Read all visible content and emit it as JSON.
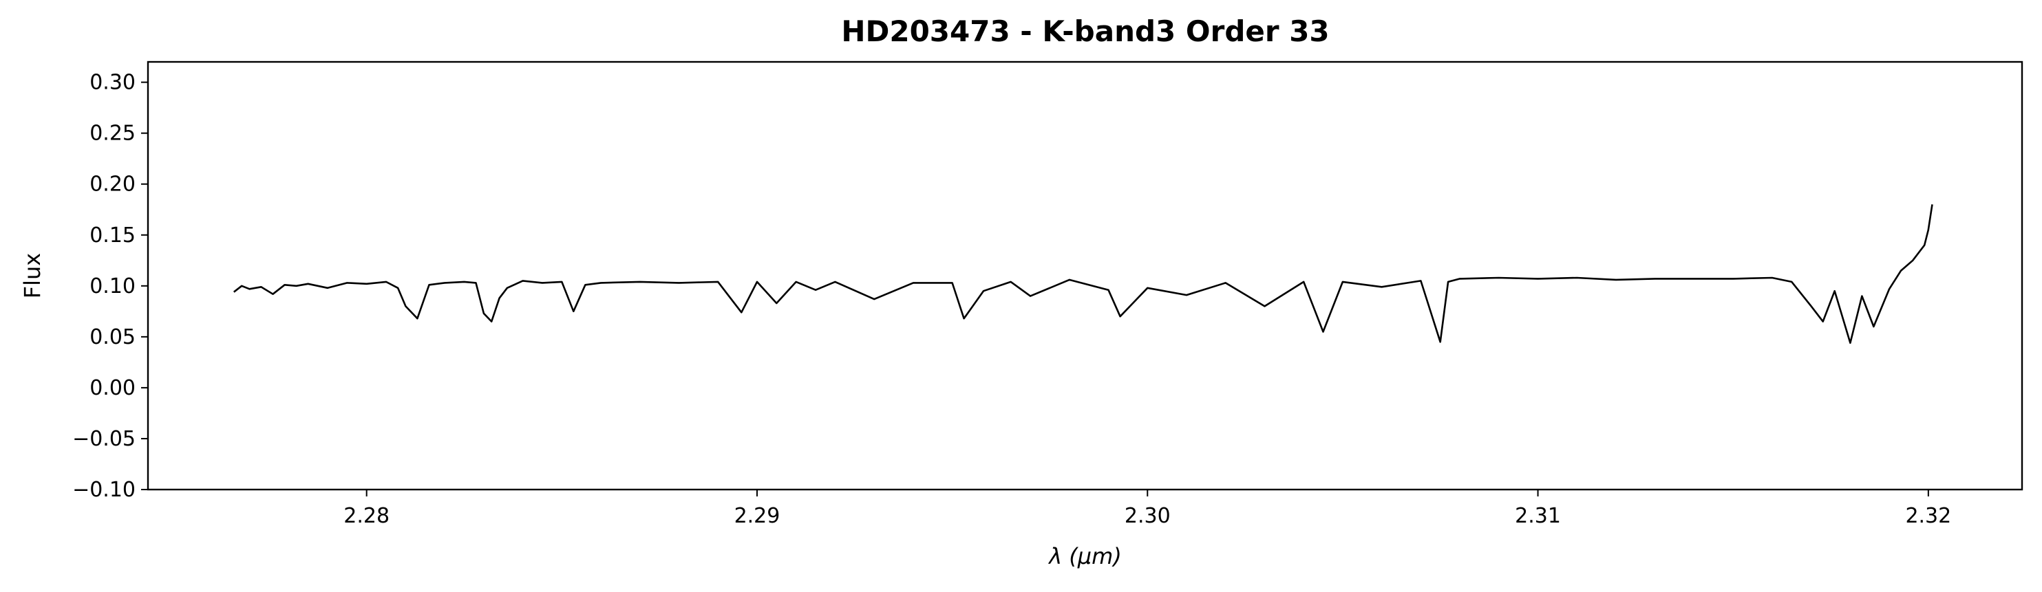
{
  "chart_data": {
    "type": "line",
    "title": "HD203473 - K-band3 Order 33",
    "xlabel": "λ (μm)",
    "ylabel": "Flux",
    "xlim": [
      2.2744,
      2.3224
    ],
    "ylim": [
      -0.1,
      0.32
    ],
    "x_ticks": [
      2.28,
      2.29,
      2.3,
      2.31,
      2.32
    ],
    "x_tick_labels": [
      "2.28",
      "2.29",
      "2.30",
      "2.31",
      "2.32"
    ],
    "y_ticks": [
      -0.1,
      -0.05,
      0.0,
      0.05,
      0.1,
      0.15,
      0.2,
      0.25,
      0.3
    ],
    "y_tick_labels": [
      "−0.10",
      "−0.05",
      "0.00",
      "0.05",
      "0.10",
      "0.15",
      "0.20",
      "0.25",
      "0.30"
    ],
    "grid": false,
    "legend": "none",
    "series": [
      {
        "color": "#000000",
        "x": [
          2.2766,
          2.2768,
          2.277,
          2.2773,
          2.2776,
          2.2779,
          2.2782,
          2.2785,
          2.279,
          2.2795,
          2.28,
          2.2805,
          2.2808,
          2.281,
          2.2813,
          2.2816,
          2.282,
          2.2825,
          2.2828,
          2.283,
          2.2832,
          2.2834,
          2.2836,
          2.284,
          2.2845,
          2.285,
          2.2853,
          2.2856,
          2.286,
          2.287,
          2.288,
          2.289,
          2.2896,
          2.29,
          2.2905,
          2.291,
          2.2915,
          2.292,
          2.293,
          2.294,
          2.295,
          2.2953,
          2.2958,
          2.2965,
          2.297,
          2.298,
          2.299,
          2.2993,
          2.3,
          2.301,
          2.302,
          2.303,
          2.304,
          2.3045,
          2.305,
          2.306,
          2.307,
          2.3075,
          2.3077,
          2.308,
          2.309,
          2.31,
          2.311,
          2.312,
          2.313,
          2.314,
          2.315,
          2.316,
          2.3165,
          2.317,
          2.3173,
          2.3176,
          2.318,
          2.3183,
          2.3186,
          2.319,
          2.3193,
          2.3196,
          2.3199,
          2.32,
          2.3201
        ],
        "values": [
          0.094,
          0.1,
          0.097,
          0.099,
          0.092,
          0.101,
          0.1,
          0.102,
          0.098,
          0.103,
          0.102,
          0.104,
          0.098,
          0.08,
          0.068,
          0.101,
          0.103,
          0.104,
          0.103,
          0.073,
          0.065,
          0.088,
          0.098,
          0.105,
          0.103,
          0.104,
          0.075,
          0.101,
          0.103,
          0.104,
          0.103,
          0.104,
          0.074,
          0.104,
          0.083,
          0.104,
          0.096,
          0.104,
          0.087,
          0.103,
          0.103,
          0.068,
          0.095,
          0.104,
          0.09,
          0.106,
          0.096,
          0.07,
          0.098,
          0.091,
          0.103,
          0.08,
          0.104,
          0.055,
          0.104,
          0.099,
          0.105,
          0.045,
          0.104,
          0.107,
          0.108,
          0.107,
          0.108,
          0.106,
          0.107,
          0.107,
          0.107,
          0.108,
          0.104,
          0.08,
          0.065,
          0.095,
          0.044,
          0.09,
          0.06,
          0.097,
          0.115,
          0.125,
          0.14,
          0.155,
          0.18
        ]
      }
    ]
  }
}
